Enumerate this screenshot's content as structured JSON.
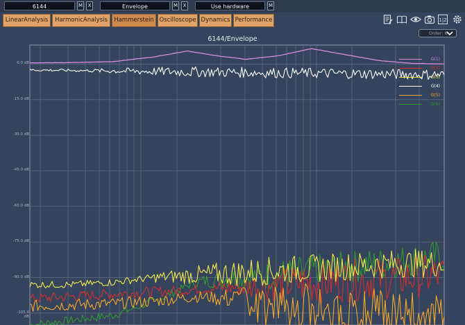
{
  "toolbar": {
    "measurement": "6144",
    "signal": "Envelope",
    "hardware": "Use hardware",
    "m_label": "M",
    "x_label": "X"
  },
  "tabs": [
    {
      "label": "LinearAnalysis",
      "active": false
    },
    {
      "label": "HarmonicAnalysis",
      "active": false
    },
    {
      "label": "Hammerstein",
      "active": true
    },
    {
      "label": "Oscilloscope",
      "active": false
    },
    {
      "label": "Dynamics",
      "active": false
    },
    {
      "label": "Performance",
      "active": false
    }
  ],
  "icons": [
    "notepad-icon",
    "book-icon",
    "eye-icon",
    "camera-icon",
    "one-half-icon",
    "gear-icon"
  ],
  "order_select": {
    "value": "Order: 6"
  },
  "colors": {
    "accent_tab": "#e0a267",
    "background": "#35435c"
  },
  "chart_data": {
    "type": "line",
    "title": "6144/Envelope",
    "xlabel": "",
    "ylabel": "",
    "yticks": [
      "0.0 dB",
      "-15.0 dB",
      "-30.0 dB",
      "-45.0 dB",
      "-60.0 dB",
      "-75.0 dB",
      "-90.0 dB",
      "-105.0 dB"
    ],
    "ylim": [
      -110,
      8
    ],
    "xlim": [
      0,
      1
    ],
    "x_scale": "log",
    "grid": true,
    "legend_position": "top-right",
    "series": [
      {
        "name": "G(1)",
        "color": "#d98be0",
        "x": [
          0,
          0.1,
          0.2,
          0.3,
          0.38,
          0.45,
          0.52,
          0.6,
          0.68,
          0.76,
          0.84,
          0.92,
          1.0
        ],
        "values": [
          0.5,
          0.6,
          1,
          3,
          5.5,
          3.5,
          2,
          3.5,
          6.5,
          4,
          1.5,
          0.3,
          0
        ]
      },
      {
        "name": "G(2)",
        "color": "#d12e2e",
        "x": [
          0,
          0.1,
          0.2,
          0.3,
          0.4,
          0.5,
          0.6,
          0.7,
          0.8,
          0.9,
          1.0
        ],
        "values": [
          -99,
          -98,
          -97,
          -96,
          -95,
          -94,
          -93,
          -92,
          -91,
          -90,
          -89
        ]
      },
      {
        "name": "G(3)",
        "color": "#f2ea4d",
        "x": [
          0,
          0.1,
          0.2,
          0.3,
          0.4,
          0.5,
          0.6,
          0.7,
          0.8,
          0.9,
          1.0
        ],
        "values": [
          -93,
          -93,
          -92,
          -90,
          -89,
          -88,
          -87,
          -86,
          -85,
          -84,
          -84
        ]
      },
      {
        "name": "G(4)",
        "color": "#ffffff",
        "x": [
          0,
          0.25,
          0.5,
          0.75,
          1.0
        ],
        "values": [
          -2.5,
          -3,
          -3.5,
          -4,
          -4.5
        ]
      },
      {
        "name": "G(5)",
        "color": "#f4a92a",
        "x": [
          0,
          0.1,
          0.2,
          0.3,
          0.4,
          0.5,
          0.6,
          0.7,
          0.8,
          0.9,
          1.0
        ],
        "values": [
          -102,
          -101.5,
          -101,
          -100,
          -98,
          -99,
          -101,
          -103,
          -104,
          -105,
          -106
        ]
      },
      {
        "name": "G(6)",
        "color": "#2f9a33",
        "x": [
          0,
          0.1,
          0.2,
          0.3,
          0.4,
          0.5,
          0.6,
          0.7,
          0.8,
          0.9,
          1.0
        ],
        "values": [
          -110,
          -108,
          -106,
          -100,
          -92,
          -90,
          -89,
          -87,
          -85,
          -83,
          -81
        ]
      }
    ]
  }
}
